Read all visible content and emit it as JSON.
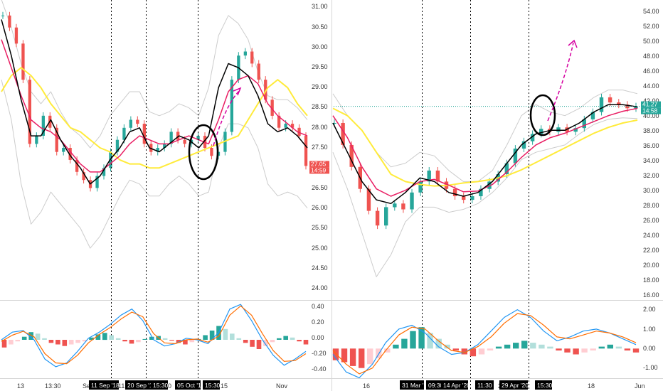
{
  "chart_data": [
    {
      "type": "line",
      "panel": "left-price",
      "y_axis": {
        "ticks": [
          "31.00",
          "30.50",
          "30.00",
          "29.50",
          "29.00",
          "28.50",
          "28.00",
          "27.50",
          "27.00",
          "26.50",
          "26.00",
          "25.50",
          "25.00",
          "24.50",
          "24.00"
        ],
        "ylim": [
          23.85,
          31.15
        ]
      },
      "x_axis": {
        "labels": [
          "13",
          "13:30",
          "Se",
          "11",
          "0",
          "15",
          "Nov"
        ]
      },
      "last_price": {
        "value": "27.05",
        "countdown": "14:59",
        "color": "#ef5350"
      },
      "vertical_markers": [
        {
          "label": "11 Sep '18"
        },
        {
          "label": "20 Sep '18"
        },
        {
          "label": "15:30"
        },
        {
          "label": "05 Oct '18"
        },
        {
          "label": "15:30"
        }
      ],
      "series": [
        {
          "name": "",
          "color": "#ffeb3b",
          "values": [
            28.9,
            29.3,
            29.5,
            29.3,
            29.0,
            28.6,
            28.3,
            28.0,
            27.9,
            27.7,
            27.5,
            27.4,
            27.2,
            27.1,
            27.1,
            27.0,
            27.0,
            27.1,
            27.2,
            27.3,
            27.4,
            27.5,
            27.6,
            27.7,
            27.8,
            28.2,
            28.6,
            29.0,
            29.2,
            29.0,
            28.6,
            28.3
          ]
        },
        {
          "name": "",
          "color": "#e91e63",
          "values": [
            30.2,
            29.5,
            28.8,
            28.2,
            28.0,
            27.9,
            27.7,
            27.4,
            27.1,
            26.9,
            26.9,
            27.1,
            27.3,
            27.6,
            27.8,
            27.7,
            27.6,
            27.6,
            27.7,
            27.8,
            27.7,
            27.6,
            28.2,
            28.9,
            29.2,
            29.3,
            29.1,
            28.6,
            28.3,
            28.1,
            27.9,
            27.8
          ]
        },
        {
          "name": "",
          "color": "#000000",
          "values": [
            30.7,
            29.8,
            28.7,
            27.8,
            27.8,
            28.2,
            27.7,
            27.3,
            27.0,
            26.6,
            26.8,
            27.2,
            27.5,
            27.9,
            28.0,
            27.5,
            27.4,
            27.6,
            27.8,
            27.7,
            27.5,
            27.8,
            29.0,
            29.6,
            29.5,
            29.3,
            28.8,
            28.1,
            27.9,
            28.0,
            27.8,
            27.5
          ]
        },
        {
          "name": "",
          "color": "#cccccc",
          "values": [
            31.2,
            30.5,
            29.6,
            28.9,
            28.6,
            28.9,
            28.4,
            28.0,
            27.8,
            27.5,
            27.8,
            28.3,
            28.6,
            28.9,
            28.9,
            28.4,
            28.3,
            28.4,
            28.6,
            28.5,
            28.3,
            29.0,
            30.3,
            30.8,
            30.6,
            30.2,
            29.4,
            28.8,
            28.7,
            28.7,
            28.5,
            28.2
          ]
        },
        {
          "name": "",
          "color": "#cccccc",
          "values": [
            29.2,
            28.2,
            26.6,
            25.6,
            25.9,
            26.4,
            26.1,
            25.8,
            25.5,
            25.0,
            25.3,
            25.8,
            26.3,
            26.7,
            26.6,
            26.3,
            26.3,
            26.6,
            26.8,
            26.6,
            26.3,
            26.4,
            27.5,
            28.1,
            28.1,
            28.0,
            27.5,
            26.6,
            26.3,
            26.4,
            26.3,
            26.0
          ]
        }
      ],
      "candles_close": [
        30.8,
        30.5,
        30.1,
        29.2,
        27.6,
        27.8,
        28.3,
        28.0,
        27.4,
        27.5,
        27.2,
        26.9,
        26.7,
        26.5,
        26.8,
        27.0,
        27.4,
        27.7,
        28.0,
        28.2,
        28.1,
        27.6,
        27.4,
        27.5,
        27.6,
        27.9,
        27.7,
        27.6,
        27.7,
        27.8,
        27.5,
        27.3,
        27.4,
        27.9,
        29.2,
        29.8,
        29.9,
        29.6,
        29.2,
        28.7,
        28.3,
        28.0,
        28.1,
        28.0,
        27.8,
        27.05
      ]
    },
    {
      "type": "line",
      "panel": "right-price",
      "y_axis": {
        "ticks": [
          "54.00",
          "52.00",
          "50.00",
          "48.00",
          "46.00",
          "44.00",
          "42.00",
          "40.00",
          "38.00",
          "36.00",
          "34.00",
          "32.00",
          "30.00",
          "28.00",
          "26.00",
          "24.00",
          "22.00",
          "20.00",
          "18.00",
          "16.00"
        ],
        "ylim": [
          15.6,
          55.6
        ]
      },
      "x_axis": {
        "labels": [
          "16",
          "22",
          "18",
          "Jun"
        ]
      },
      "last_price": {
        "value": "41.27",
        "countdown": "14:58",
        "color": "#26a69a"
      },
      "vertical_markers": [
        {
          "label": "31 Mar '20"
        },
        {
          "label": "09:30"
        },
        {
          "label": "14 Apr '20"
        },
        {
          "label": "11:30"
        },
        {
          "label": "29 Apr '20"
        },
        {
          "label": "15:30"
        }
      ],
      "series": [
        {
          "name": "",
          "color": "#ffeb3b",
          "values": [
            41.0,
            40.0,
            38.0,
            35.0,
            32.0,
            31.0,
            30.6,
            30.4,
            30.5,
            30.8,
            31.0,
            31.3,
            31.8,
            32.6,
            33.6,
            34.6,
            35.6,
            36.6,
            37.6,
            38.4,
            39.0,
            39.4
          ]
        },
        {
          "name": "",
          "color": "#e91e63",
          "values": [
            40.0,
            37.0,
            33.0,
            30.0,
            29.0,
            29.8,
            31.0,
            31.3,
            30.5,
            29.6,
            29.7,
            30.6,
            32.3,
            34.3,
            36.0,
            37.0,
            37.6,
            38.4,
            39.2,
            40.0,
            40.6,
            41.0
          ]
        },
        {
          "name": "",
          "color": "#000000",
          "values": [
            39.0,
            35.0,
            31.0,
            28.5,
            28.0,
            29.5,
            31.5,
            31.0,
            29.5,
            29.0,
            29.5,
            31.0,
            33.5,
            36.0,
            37.5,
            38.0,
            38.0,
            39.0,
            40.5,
            41.5,
            41.5,
            41.2
          ]
        },
        {
          "name": "",
          "color": "#cccccc",
          "values": [
            43.0,
            40.0,
            38.0,
            35.0,
            33.0,
            33.5,
            35.0,
            34.5,
            32.5,
            31.0,
            31.0,
            32.5,
            36.0,
            40.0,
            41.5,
            40.5,
            40.0,
            41.0,
            42.5,
            43.5,
            43.5,
            43.0
          ]
        },
        {
          "name": "",
          "color": "#cccccc",
          "values": [
            35.0,
            30.0,
            24.0,
            18.0,
            21.0,
            25.5,
            27.5,
            27.5,
            26.8,
            27.2,
            28.0,
            29.5,
            31.5,
            34.0,
            35.0,
            35.5,
            36.0,
            37.5,
            38.8,
            39.5,
            39.7,
            39.6
          ]
        }
      ],
      "candles_close": [
        39.0,
        36.0,
        33.0,
        30.0,
        27.0,
        25.0,
        27.5,
        28.0,
        27.2,
        29.5,
        31.0,
        32.5,
        31.0,
        30.0,
        29.0,
        28.5,
        29.0,
        30.0,
        31.0,
        32.0,
        33.5,
        35.5,
        36.5,
        37.5,
        38.2,
        37.8,
        38.4,
        37.8,
        38.3,
        39.5,
        40.5,
        42.5,
        41.8,
        41.5,
        41.0,
        41.27
      ],
      "reference_line": {
        "value": 41.27,
        "color": "#26a69a"
      }
    },
    {
      "type": "bar",
      "panel": "left-macd",
      "y_axis": {
        "ticks": [
          "0.40",
          "0.20",
          "0.00",
          "-0.20",
          "-0.40"
        ],
        "ylim": [
          -0.48,
          0.48
        ]
      },
      "histogram": [
        -0.1,
        -0.06,
        -0.02,
        0.04,
        0.1,
        0.08,
        0.02,
        -0.04,
        -0.06,
        -0.08,
        -0.06,
        -0.04,
        -0.02,
        0.03,
        0.07,
        0.09,
        0.06,
        0.02,
        -0.02,
        -0.05,
        -0.03,
        0.01,
        0.04,
        0.05,
        0.02,
        -0.01,
        -0.04,
        -0.06,
        -0.03,
        0.01,
        0.06,
        0.12,
        0.18,
        0.14,
        0.08,
        0.02,
        -0.04,
        -0.09,
        -0.12,
        -0.08,
        -0.03,
        0.02,
        0.05,
        0.03,
        -0.02,
        -0.06
      ],
      "series": [
        {
          "name": "",
          "color": "#2196f3",
          "values": [
            0.0,
            0.1,
            0.12,
            0.0,
            -0.25,
            -0.35,
            -0.3,
            -0.15,
            0.02,
            0.1,
            0.2,
            0.32,
            0.4,
            0.25,
            0.0,
            -0.08,
            -0.05,
            0.02,
            0.0,
            -0.05,
            0.1,
            0.4,
            0.46,
            0.25,
            0.0,
            -0.2,
            -0.33,
            -0.25,
            -0.15
          ]
        },
        {
          "name": "",
          "color": "#ff6d00",
          "values": [
            -0.02,
            0.06,
            0.11,
            0.04,
            -0.18,
            -0.3,
            -0.31,
            -0.2,
            -0.04,
            0.07,
            0.16,
            0.27,
            0.36,
            0.3,
            0.08,
            -0.04,
            -0.05,
            0.0,
            0.01,
            -0.03,
            0.05,
            0.32,
            0.44,
            0.32,
            0.08,
            -0.14,
            -0.28,
            -0.27,
            -0.18
          ]
        }
      ]
    },
    {
      "type": "bar",
      "panel": "right-macd",
      "y_axis": {
        "ticks": [
          "2.00",
          "1.00",
          "0.00",
          "-1.00"
        ],
        "ylim": [
          -1.45,
          2.35
        ]
      },
      "histogram": [
        -0.6,
        -0.7,
        -0.9,
        -1.0,
        -0.8,
        -0.5,
        -0.2,
        0.2,
        0.5,
        0.9,
        1.1,
        0.8,
        0.5,
        0.2,
        -0.1,
        -0.3,
        -0.4,
        -0.3,
        -0.1,
        0.1,
        0.2,
        0.3,
        0.4,
        0.3,
        0.2,
        0.1,
        -0.1,
        -0.2,
        -0.3,
        -0.2,
        -0.1,
        0.1,
        0.2,
        0.1,
        -0.1,
        -0.2
      ],
      "series": [
        {
          "name": "",
          "color": "#2196f3",
          "values": [
            -0.3,
            -1.2,
            -1.5,
            -0.8,
            0.3,
            1.0,
            1.2,
            0.8,
            0.1,
            -0.3,
            -0.2,
            0.2,
            0.9,
            1.6,
            2.0,
            1.6,
            0.9,
            0.4,
            0.6,
            0.9,
            1.0,
            0.8,
            0.5,
            0.2
          ]
        },
        {
          "name": "",
          "color": "#ff6d00",
          "values": [
            -0.1,
            -0.8,
            -1.3,
            -1.0,
            -0.1,
            0.7,
            1.1,
            1.0,
            0.4,
            -0.1,
            -0.2,
            0.1,
            0.6,
            1.3,
            1.8,
            1.7,
            1.2,
            0.6,
            0.5,
            0.7,
            0.9,
            0.8,
            0.6,
            0.3
          ]
        }
      ]
    }
  ]
}
